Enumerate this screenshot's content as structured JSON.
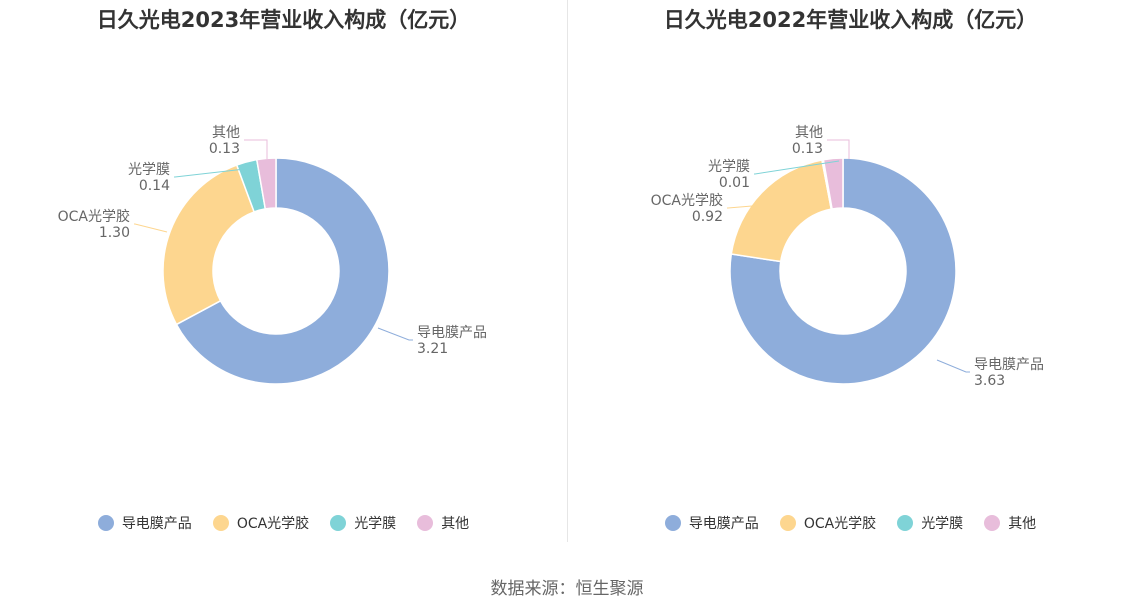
{
  "chart_data": [
    {
      "type": "pie",
      "title": "日久光电2023年营业收入构成（亿元）",
      "categories": [
        "导电膜产品",
        "OCA光学胶",
        "光学膜",
        "其他"
      ],
      "values": [
        3.21,
        1.3,
        0.14,
        0.13
      ],
      "labels": [
        "3.21",
        "1.30",
        "0.14",
        "0.13"
      ],
      "donut": true,
      "legend_position": "bottom"
    },
    {
      "type": "pie",
      "title": "日久光电2022年营业收入构成（亿元）",
      "categories": [
        "导电膜产品",
        "OCA光学胶",
        "光学膜",
        "其他"
      ],
      "values": [
        3.63,
        0.92,
        0.01,
        0.13
      ],
      "labels": [
        "3.63",
        "0.92",
        "0.01",
        "0.13"
      ],
      "donut": true,
      "legend_position": "bottom"
    }
  ],
  "colors": [
    "#8eaddb",
    "#fdd68f",
    "#7fd3d7",
    "#e8bddb"
  ],
  "legend": {
    "items": [
      "导电膜产品",
      "OCA光学胶",
      "光学膜",
      "其他"
    ]
  },
  "source": "数据来源：恒生聚源"
}
